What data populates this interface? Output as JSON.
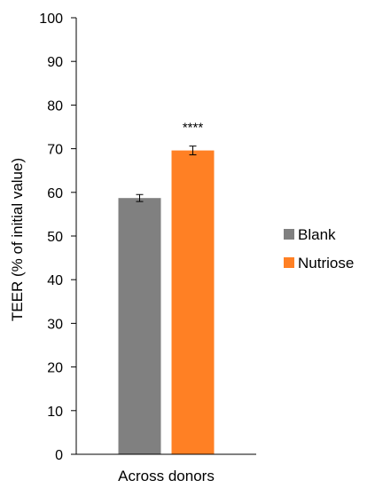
{
  "chart_data": {
    "type": "bar",
    "title": "",
    "xlabel": "",
    "ylabel": "TEER (% of initial value)",
    "ylim": [
      0,
      100
    ],
    "yticks": [
      0,
      10,
      20,
      30,
      40,
      50,
      60,
      70,
      80,
      90,
      100
    ],
    "categories": [
      "Across donors"
    ],
    "series": [
      {
        "name": "Blank",
        "values": [
          58.7
        ],
        "error": [
          0.8
        ],
        "color": "#808080"
      },
      {
        "name": "Nutriose",
        "values": [
          69.6
        ],
        "error": [
          1.0
        ],
        "color": "#FF8024"
      }
    ],
    "annotations": [
      {
        "series": "Nutriose",
        "category": "Across donors",
        "text": "****"
      }
    ],
    "grid": false,
    "legend": "right"
  }
}
